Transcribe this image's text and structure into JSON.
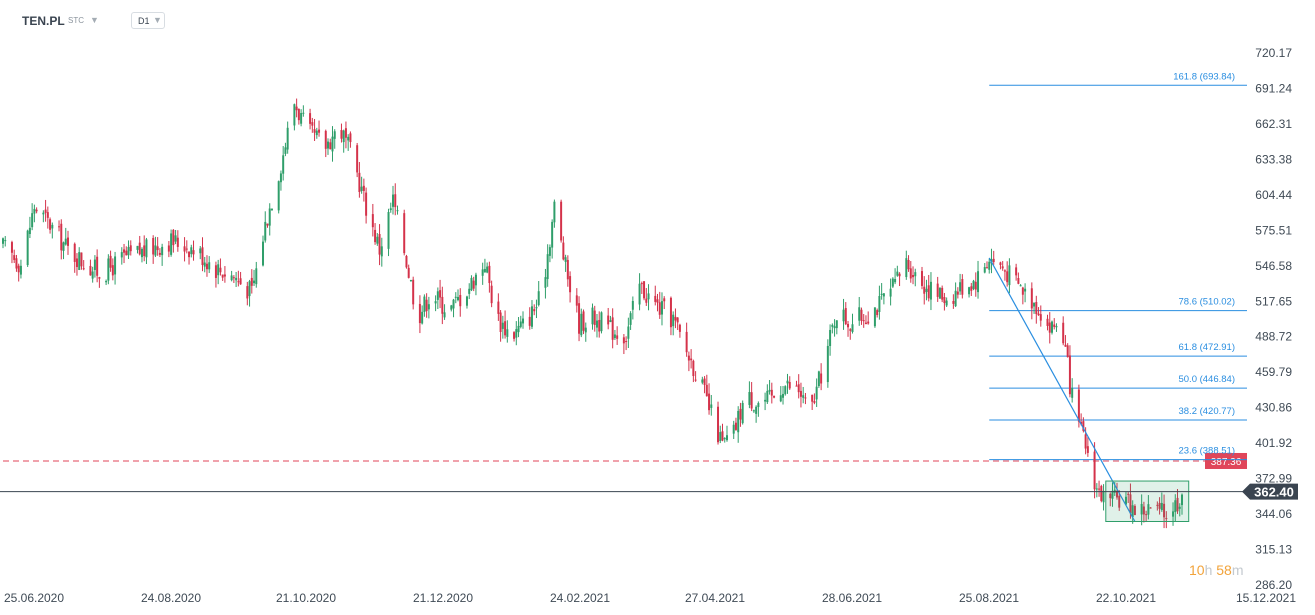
{
  "header": {
    "symbol": "TEN.PL",
    "market": "STC",
    "timeframe": "D1"
  },
  "countdown": {
    "hours": "10",
    "hours_unit": "h",
    "minutes": "58",
    "minutes_unit": "m"
  },
  "colors": {
    "up": "#2f9e6a",
    "down": "#d4324a",
    "fib": "#2a8ee0",
    "support": "#e0465a",
    "price_line": "#3a4450",
    "grid": "#ffffff"
  },
  "chart_data": {
    "type": "candlestick",
    "title": "",
    "xlabel": "",
    "ylabel": "",
    "ylim": [
      286.2,
      735.0
    ],
    "y_ticks": [
      720.17,
      691.24,
      662.31,
      633.38,
      604.44,
      575.51,
      546.58,
      517.65,
      488.72,
      459.79,
      430.86,
      401.92,
      372.99,
      344.06,
      315.13,
      286.2
    ],
    "x_ticks": [
      "25.06.2020",
      "24.08.2020",
      "21.10.2020",
      "21.12.2020",
      "24.02.2021",
      "27.04.2021",
      "28.06.2021",
      "25.08.2021",
      "22.10.2021",
      "15.12.2021"
    ],
    "x_range": [
      "2020-06-11",
      "2021-12-18"
    ],
    "current_price": {
      "value": 362.4,
      "label": "362.40"
    },
    "support_line": {
      "value": 387.36,
      "label": "387.36",
      "from": "2020-06-11"
    },
    "fibonacci": {
      "from": "2021-08-25",
      "to": "2021-12-11",
      "levels": [
        {
          "label": "161.8 (693.84)",
          "value": 693.84
        },
        {
          "label": "78.6 (510.02)",
          "value": 510.02
        },
        {
          "label": "61.8 (472.91)",
          "value": 472.91
        },
        {
          "label": "50.0 (446.84)",
          "value": 446.84
        },
        {
          "label": "38.2 (420.77)",
          "value": 420.77
        },
        {
          "label": "23.6 (388.51)",
          "value": 388.51
        }
      ]
    },
    "trend_line": {
      "from": {
        "x": "2021-08-25",
        "y": 553
      },
      "to": {
        "x": "2021-10-29",
        "y": 338
      }
    },
    "box": {
      "x0": "2021-10-16",
      "x1": "2021-11-22",
      "y0": 338,
      "y1": 371
    },
    "price_anchors": [
      [
        "2020-06-11",
        562
      ],
      [
        "2020-06-19",
        548
      ],
      [
        "2020-06-25",
        595
      ],
      [
        "2020-07-02",
        580
      ],
      [
        "2020-07-10",
        560
      ],
      [
        "2020-07-18",
        548
      ],
      [
        "2020-07-25",
        540
      ],
      [
        "2020-08-04",
        553
      ],
      [
        "2020-08-15",
        560
      ],
      [
        "2020-08-24",
        567
      ],
      [
        "2020-08-30",
        565
      ],
      [
        "2020-09-06",
        558
      ],
      [
        "2020-09-14",
        545
      ],
      [
        "2020-09-22",
        538
      ],
      [
        "2020-09-30",
        525
      ],
      [
        "2020-10-06",
        580
      ],
      [
        "2020-10-13",
        630
      ],
      [
        "2020-10-19",
        680
      ],
      [
        "2020-10-25",
        655
      ],
      [
        "2020-11-02",
        645
      ],
      [
        "2020-11-08",
        660
      ],
      [
        "2020-11-14",
        635
      ],
      [
        "2020-11-20",
        595
      ],
      [
        "2020-11-26",
        560
      ],
      [
        "2020-12-02",
        600
      ],
      [
        "2020-12-07",
        560
      ],
      [
        "2020-12-13",
        505
      ],
      [
        "2020-12-19",
        525
      ],
      [
        "2020-12-27",
        510
      ],
      [
        "2021-01-05",
        530
      ],
      [
        "2021-01-12",
        550
      ],
      [
        "2021-01-17",
        505
      ],
      [
        "2021-01-24",
        490
      ],
      [
        "2021-01-30",
        500
      ],
      [
        "2021-02-06",
        520
      ],
      [
        "2021-02-12",
        595
      ],
      [
        "2021-02-17",
        545
      ],
      [
        "2021-02-23",
        500
      ],
      [
        "2021-03-01",
        505
      ],
      [
        "2021-03-09",
        495
      ],
      [
        "2021-03-16",
        490
      ],
      [
        "2021-03-22",
        530
      ],
      [
        "2021-03-29",
        515
      ],
      [
        "2021-04-06",
        503
      ],
      [
        "2021-04-11",
        480
      ],
      [
        "2021-04-17",
        458
      ],
      [
        "2021-04-22",
        430
      ],
      [
        "2021-04-28",
        400
      ],
      [
        "2021-05-03",
        410
      ],
      [
        "2021-05-08",
        440
      ],
      [
        "2021-05-14",
        435
      ],
      [
        "2021-05-20",
        438
      ],
      [
        "2021-05-25",
        450
      ],
      [
        "2021-06-01",
        445
      ],
      [
        "2021-06-06",
        425
      ],
      [
        "2021-06-12",
        465
      ],
      [
        "2021-06-18",
        510
      ],
      [
        "2021-06-24",
        500
      ],
      [
        "2021-07-01",
        507
      ],
      [
        "2021-07-07",
        515
      ],
      [
        "2021-07-13",
        528
      ],
      [
        "2021-07-19",
        550
      ],
      [
        "2021-07-25",
        535
      ],
      [
        "2021-07-31",
        525
      ],
      [
        "2021-08-07",
        520
      ],
      [
        "2021-08-13",
        530
      ],
      [
        "2021-08-19",
        535
      ],
      [
        "2021-08-25",
        553
      ],
      [
        "2021-08-31",
        545
      ],
      [
        "2021-09-05",
        535
      ],
      [
        "2021-09-10",
        525
      ],
      [
        "2021-09-16",
        513
      ],
      [
        "2021-09-21",
        495
      ],
      [
        "2021-09-26",
        502
      ],
      [
        "2021-10-02",
        425
      ],
      [
        "2021-10-07",
        400
      ],
      [
        "2021-10-12",
        365
      ],
      [
        "2021-10-17",
        352
      ],
      [
        "2021-10-23",
        358
      ],
      [
        "2021-10-30",
        347
      ],
      [
        "2021-11-05",
        348
      ],
      [
        "2021-11-11",
        344
      ],
      [
        "2021-11-17",
        354
      ],
      [
        "2021-11-19",
        362
      ]
    ]
  }
}
